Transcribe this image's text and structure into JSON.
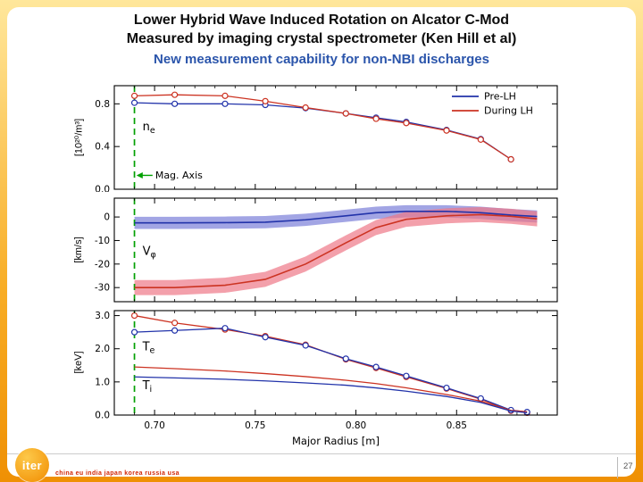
{
  "slide": {
    "title_line1": "Lower Hybrid Wave Induced Rotation on Alcator C-Mod",
    "title_line2": "Measured by imaging crystal spectrometer (Ken Hill et al)",
    "subtitle": "New measurement capability for non-NBI discharges",
    "page_number": "27",
    "footer_org": "iter",
    "footer_members": "china eu india japan korea russia usa"
  },
  "colors": {
    "subtitle_blue": "#2b55ab",
    "pre_lh_blue": "#2233aa",
    "during_lh_red": "#cc3322",
    "band_blue": "#7b7fd9",
    "band_red": "#ee7788",
    "mag_axis_green": "#00a000",
    "border_orange": "#f8ad25"
  },
  "chart_data": [
    {
      "type": "line",
      "name": "electron-density",
      "ylabel": "[10²⁰/m³]",
      "xlim": [
        0.68,
        0.9
      ],
      "ylim": [
        0,
        0.97
      ],
      "xticks": [
        0.7,
        0.75,
        0.8,
        0.85
      ],
      "xtick_labels": [
        "0.70",
        "0.75",
        "0.80",
        "0.85"
      ],
      "yticks": [
        0.0,
        0.4,
        0.8
      ],
      "ytick_labels": [
        "0.0",
        "0.4",
        "0.8"
      ],
      "x": [
        0.69,
        0.71,
        0.735,
        0.755,
        0.775,
        0.795,
        0.81,
        0.825,
        0.845,
        0.862,
        0.877
      ],
      "series": [
        {
          "name": "Pre-LH",
          "color": "#2233aa",
          "markers": true,
          "values": [
            0.81,
            0.8,
            0.8,
            0.79,
            0.76,
            0.71,
            0.67,
            0.63,
            0.555,
            0.47,
            0.28
          ]
        },
        {
          "name": "During LH",
          "color": "#cc3322",
          "markers": true,
          "values": [
            0.875,
            0.885,
            0.875,
            0.825,
            0.765,
            0.71,
            0.66,
            0.62,
            0.55,
            0.465,
            0.28
          ]
        }
      ],
      "legend": {
        "position": "top-right",
        "entries": [
          {
            "label": "Pre-LH",
            "color": "#2233aa"
          },
          {
            "label": "During LH",
            "color": "#cc3322"
          }
        ]
      },
      "annotations": [
        {
          "main": "n",
          "sub": "e",
          "x": 0.694,
          "y": 0.55
        }
      ],
      "mag_axis": {
        "x": 0.69,
        "color": "#00a000"
      },
      "arrow_label": {
        "text": "Mag. Axis",
        "x_from": 0.699,
        "x_to": 0.691,
        "y": 0.13
      }
    },
    {
      "type": "line",
      "name": "toroidal-rotation",
      "ylabel": "[km/s]",
      "xlim": [
        0.68,
        0.9
      ],
      "ylim": [
        -36,
        8
      ],
      "xticks": [
        0.7,
        0.75,
        0.8,
        0.85
      ],
      "xtick_labels": [
        "0.70",
        "0.75",
        "0.80",
        "0.85"
      ],
      "yticks": [
        0,
        -10,
        -20,
        -30
      ],
      "ytick_labels": [
        "0",
        "-10",
        "-20",
        "-30"
      ],
      "x": [
        0.69,
        0.71,
        0.735,
        0.755,
        0.775,
        0.795,
        0.81,
        0.825,
        0.845,
        0.862,
        0.877,
        0.89
      ],
      "series": [
        {
          "name": "Pre-LH",
          "color": "#2233aa",
          "band": 2.6,
          "band_color": "#7b7fd9",
          "values": [
            -2.5,
            -2.5,
            -2.4,
            -2.2,
            -1.2,
            0.5,
            1.8,
            2.4,
            2.4,
            1.8,
            0.8,
            0.2
          ]
        },
        {
          "name": "During LH",
          "color": "#cc3322",
          "band": 3.2,
          "band_color": "#ee7788",
          "values": [
            -30,
            -30,
            -29,
            -26.5,
            -20,
            -11,
            -4.5,
            -1,
            0.5,
            1,
            0.3,
            -0.8
          ]
        }
      ],
      "annotations": [
        {
          "main": "V",
          "sub": "φ",
          "x": 0.694,
          "y": -16
        }
      ],
      "mag_axis": {
        "x": 0.69,
        "color": "#00a000"
      }
    },
    {
      "type": "line",
      "name": "temperatures",
      "ylabel": "[keV]",
      "xlabel": "Major Radius [m]",
      "xlim": [
        0.68,
        0.9
      ],
      "ylim": [
        0,
        3.15
      ],
      "xticks": [
        0.7,
        0.75,
        0.8,
        0.85
      ],
      "xtick_labels": [
        "0.70",
        "0.75",
        "0.80",
        "0.85"
      ],
      "yticks": [
        0,
        1,
        2,
        3
      ],
      "ytick_labels": [
        "0.0",
        "1.0",
        "2.0",
        "3.0"
      ],
      "x": [
        0.69,
        0.71,
        0.735,
        0.755,
        0.775,
        0.795,
        0.81,
        0.825,
        0.845,
        0.862,
        0.877,
        0.885
      ],
      "series": [
        {
          "name": "Te During LH",
          "color": "#cc3322",
          "markers": true,
          "values": [
            3.0,
            2.78,
            2.58,
            2.38,
            2.12,
            1.68,
            1.42,
            1.15,
            0.8,
            0.48,
            0.13,
            0.07
          ]
        },
        {
          "name": "Te Pre-LH",
          "color": "#2233aa",
          "markers": true,
          "values": [
            2.5,
            2.55,
            2.62,
            2.35,
            2.1,
            1.7,
            1.45,
            1.18,
            0.82,
            0.5,
            0.15,
            0.09
          ]
        },
        {
          "name": "Ti During LH",
          "color": "#cc3322",
          "markers": false,
          "values": [
            1.45,
            1.4,
            1.33,
            1.25,
            1.16,
            1.05,
            0.95,
            0.82,
            0.62,
            0.42,
            0.14,
            0.1
          ]
        },
        {
          "name": "Ti Pre-LH",
          "color": "#2233aa",
          "markers": false,
          "values": [
            1.15,
            1.12,
            1.08,
            1.03,
            0.97,
            0.9,
            0.82,
            0.72,
            0.56,
            0.38,
            0.12,
            0.07
          ]
        }
      ],
      "annotations": [
        {
          "main": "T",
          "sub": "e",
          "x": 0.694,
          "y": 1.95
        },
        {
          "main": "T",
          "sub": "i",
          "x": 0.694,
          "y": 0.78
        }
      ],
      "mag_axis": {
        "x": 0.69,
        "color": "#00a000"
      }
    }
  ]
}
